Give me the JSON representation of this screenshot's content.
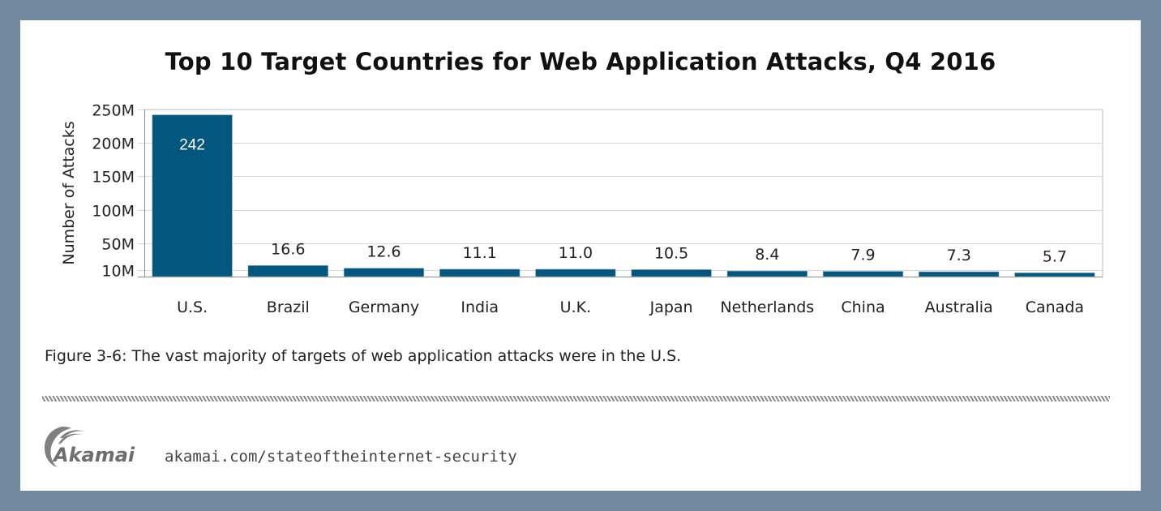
{
  "frame": {
    "border_color": "#738a9e",
    "panel_color": "#ffffff"
  },
  "chart_data": {
    "type": "bar",
    "title": "Top 10 Target Countries for Web Application Attacks, Q4 2016",
    "xlabel": "",
    "ylabel": "Number of Attacks",
    "categories": [
      "U.S.",
      "Brazil",
      "Germany",
      "India",
      "U.K.",
      "Japan",
      "Netherlands",
      "China",
      "Australia",
      "Canada"
    ],
    "values": [
      242,
      16.6,
      12.6,
      11.1,
      11.0,
      10.5,
      8.4,
      7.9,
      7.3,
      5.7
    ],
    "value_unit": "millions",
    "data_labels": [
      "242",
      "16.6",
      "12.6",
      "11.1",
      "11.0",
      "10.5",
      "8.4",
      "7.9",
      "7.3",
      "5.7"
    ],
    "ylim": [
      0,
      250
    ],
    "yticks": [
      10,
      50,
      100,
      150,
      200,
      250
    ],
    "ytick_labels": [
      "10M",
      "50M",
      "100M",
      "150M",
      "200M",
      "250M"
    ],
    "grid": true,
    "legend": "none",
    "bar_color": "#03577e"
  },
  "caption": "Figure 3-6: The vast majority of targets of web application attacks were in the U.S.",
  "footer": {
    "logo_text": "Akamai",
    "url": "akamai.com/stateoftheinternet-security"
  }
}
